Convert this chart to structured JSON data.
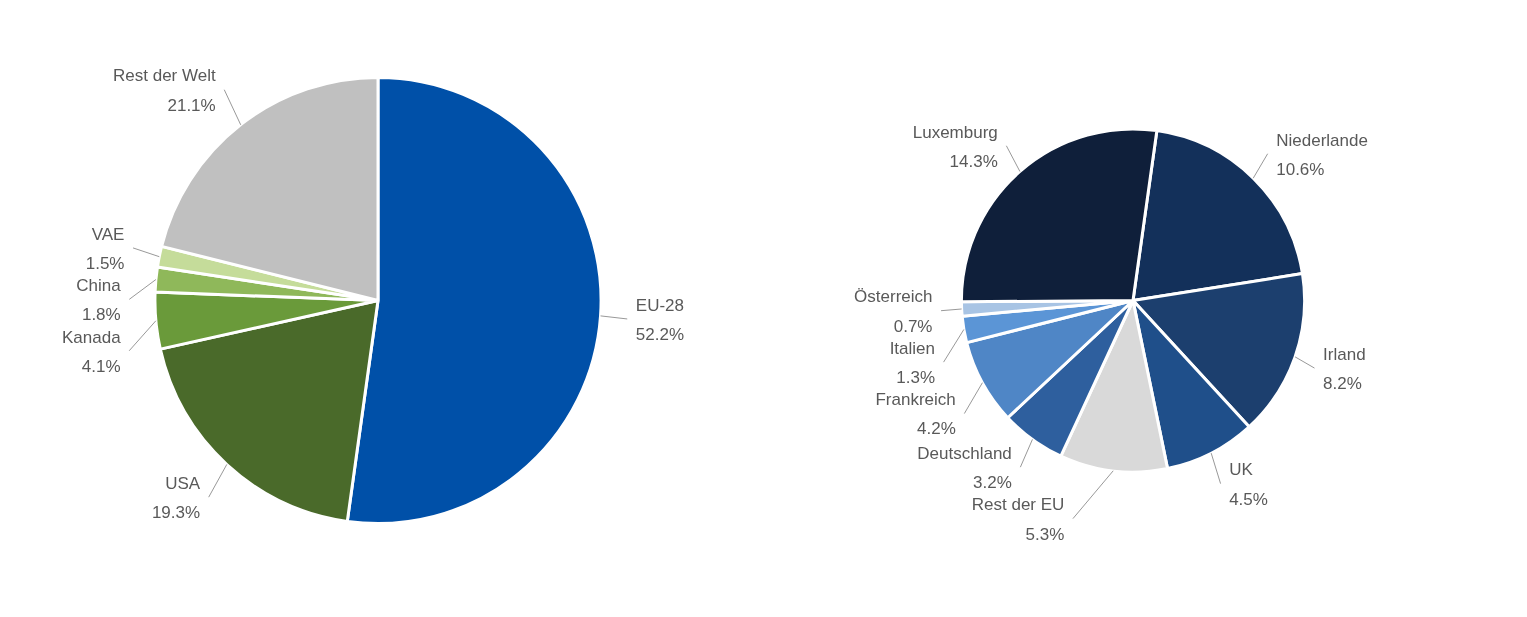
{
  "chart_data": [
    {
      "type": "pie",
      "categories": [
        "EU-28",
        "USA",
        "Kanada",
        "China",
        "VAE",
        "Rest der Welt"
      ],
      "values": [
        52.2,
        19.3,
        4.1,
        1.8,
        1.5,
        21.1
      ],
      "colors": [
        "#0050a8",
        "#4a6a2a",
        "#6a9a3a",
        "#8fb85a",
        "#c5dc9a",
        "#c0c0c0"
      ],
      "value_labels": [
        "52.2%",
        "19.3%",
        "4.1%",
        "1.8%",
        "1.5%",
        "21.1%"
      ]
    },
    {
      "type": "pie",
      "categories": [
        "Niederlande",
        "Irland",
        "UK",
        "Rest der EU",
        "Deutschland",
        "Frankreich",
        "Italien",
        "Österreich",
        "Luxemburg"
      ],
      "values": [
        10.6,
        8.2,
        4.5,
        5.3,
        3.2,
        4.2,
        1.3,
        0.7,
        14.3
      ],
      "colors": [
        "#13305a",
        "#1c3f6e",
        "#1f4f8a",
        "#d9d9d9",
        "#2e5f9e",
        "#4f86c6",
        "#5b95d6",
        "#a8c4e4",
        "#0f1f3a"
      ],
      "value_labels": [
        "10.6%",
        "8.2%",
        "4.5%",
        "5.3%",
        "3.2%",
        "4.2%",
        "1.3%",
        "0.7%",
        "14.3%"
      ]
    }
  ]
}
